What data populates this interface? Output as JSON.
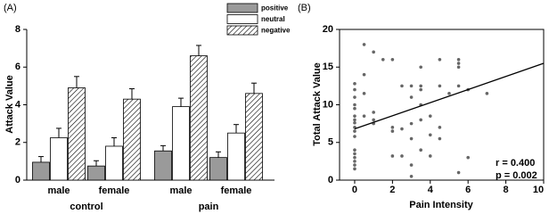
{
  "chart_data": [
    {
      "type": "bar",
      "panel_label": "(A)",
      "ylabel": "Attack Value",
      "categories": [
        "male",
        "female",
        "male",
        "female"
      ],
      "groups": [
        "control",
        "pain"
      ],
      "ylim": [
        0,
        8
      ],
      "yticks": [
        0,
        2,
        4,
        6,
        8
      ],
      "series": [
        {
          "name": "positive",
          "color": "#9a9a9a",
          "hatch": false,
          "values": [
            0.95,
            0.75,
            1.55,
            1.2
          ],
          "errors": [
            0.3,
            0.28,
            0.28,
            0.3
          ]
        },
        {
          "name": "neutral",
          "color": "#ffffff",
          "hatch": false,
          "values": [
            2.25,
            1.8,
            3.9,
            2.5
          ],
          "errors": [
            0.5,
            0.45,
            0.45,
            0.45
          ]
        },
        {
          "name": "negative",
          "color": "#ffffff",
          "hatch": true,
          "values": [
            4.9,
            4.3,
            6.6,
            4.6
          ],
          "errors": [
            0.6,
            0.55,
            0.55,
            0.55
          ]
        }
      ]
    },
    {
      "type": "scatter",
      "panel_label": "(B)",
      "xlabel": "Pain Intensity",
      "ylabel": "Total Attack Value",
      "xlim": [
        -0.8,
        10
      ],
      "ylim": [
        0,
        20
      ],
      "xticks": [
        0,
        2,
        4,
        6,
        8,
        10
      ],
      "yticks": [
        0,
        5,
        10,
        15,
        20
      ],
      "color": "#666666",
      "points": {
        "x": [
          0,
          0,
          0,
          0,
          0,
          0,
          0,
          0,
          0,
          0,
          0,
          0,
          0,
          0,
          0,
          0,
          0,
          0.5,
          0.5,
          0.5,
          0.5,
          1,
          1,
          1,
          1,
          1.5,
          2,
          2,
          2,
          2,
          2.5,
          2.5,
          2.5,
          3,
          3,
          3,
          3,
          3,
          3,
          3.5,
          3.5,
          3.5,
          3.5,
          3.5,
          3.5,
          4,
          4,
          4,
          4.5,
          4.5,
          4.5,
          4.5,
          5,
          5.5,
          5.5,
          5.5,
          5.5,
          5.5,
          6,
          6,
          7
        ],
        "y": [
          12.8,
          12,
          11,
          10,
          9.5,
          8.5,
          8,
          7.6,
          7,
          6.5,
          5.8,
          4,
          3.5,
          3,
          2.5,
          2,
          1.5,
          18,
          14,
          11.5,
          8.5,
          17,
          9,
          8,
          7.5,
          16,
          16,
          7,
          6.5,
          3.2,
          12.5,
          6.8,
          3.2,
          12.5,
          11,
          7.5,
          5.5,
          2,
          0.5,
          15,
          12.5,
          12,
          10,
          8,
          4,
          8.5,
          6,
          3.2,
          16,
          12.5,
          7,
          5.5,
          11.5,
          16,
          15.5,
          15,
          12.5,
          1,
          12,
          3,
          11.5
        ]
      },
      "trend_line": {
        "x": [
          0,
          10
        ],
        "y": [
          6.8,
          15.5
        ]
      },
      "annotations": [
        "r = 0.400",
        "p = 0.002"
      ]
    }
  ]
}
